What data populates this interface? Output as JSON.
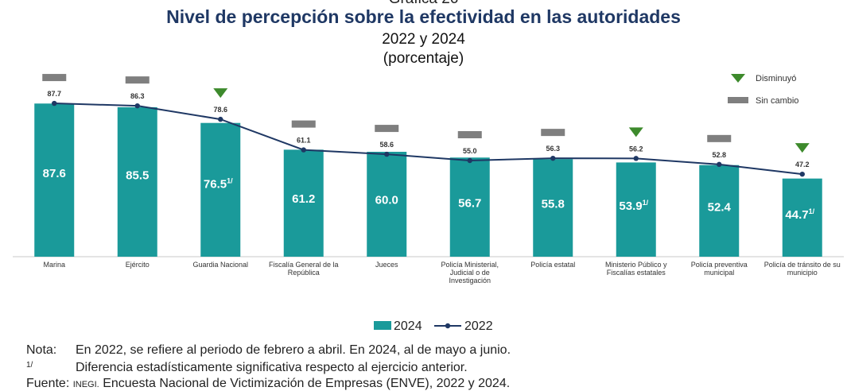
{
  "header": {
    "super_title": "Gráfica 26",
    "title": "Nivel de percepción sobre la efectividad en las autoridades",
    "subtitle": "2022 y 2024",
    "unit": "(porcentaje)"
  },
  "chart_data": {
    "type": "bar",
    "categories": [
      [
        "Marina"
      ],
      [
        "Ejército"
      ],
      [
        "Guardia Nacional"
      ],
      [
        "Fiscalía General de la",
        "República"
      ],
      [
        "Jueces"
      ],
      [
        "Policía Ministerial,",
        "Judicial o de",
        "Investigación"
      ],
      [
        "Policía estatal"
      ],
      [
        "Ministerio Público y",
        "Fiscalías estatales"
      ],
      [
        "Policía preventiva",
        "municipal"
      ],
      [
        "Policía de tránsito de su",
        "municipio"
      ]
    ],
    "series": [
      {
        "name": "2024",
        "kind": "bar",
        "color": "#1a9a9a",
        "values": [
          87.6,
          85.5,
          76.5,
          61.2,
          60.0,
          56.7,
          55.8,
          53.9,
          52.4,
          44.7
        ],
        "labels": [
          "87.6",
          "85.5",
          "76.5",
          "61.2",
          "60.0",
          "56.7",
          "55.8",
          "53.9",
          "52.4",
          "44.7"
        ],
        "significant": [
          false,
          false,
          true,
          false,
          false,
          false,
          false,
          true,
          false,
          true
        ]
      },
      {
        "name": "2022",
        "kind": "line",
        "color": "#1f3864",
        "values": [
          87.7,
          86.3,
          78.6,
          61.1,
          58.6,
          55.0,
          56.3,
          56.2,
          52.8,
          47.2
        ],
        "labels": [
          "87.7",
          "86.3",
          "78.6",
          "61.1",
          "58.6",
          "55.0",
          "56.3",
          "56.2",
          "52.8",
          "47.2"
        ]
      }
    ],
    "change_markers": [
      "sin_cambio",
      "sin_cambio",
      "disminuyo",
      "sin_cambio",
      "sin_cambio",
      "sin_cambio",
      "sin_cambio",
      "disminuyo",
      "sin_cambio",
      "disminuyo"
    ],
    "significance_mark": "1/",
    "ylim": [
      0,
      100
    ],
    "grid": false,
    "marker_legend": [
      {
        "key": "disminuyo",
        "label": "Disminuyó",
        "shape": "triangle-down",
        "color": "#3d8a2c"
      },
      {
        "key": "sin_cambio",
        "label": "Sin cambio",
        "shape": "dash",
        "color": "#7f7f7f"
      }
    ],
    "legend_position": "bottom"
  },
  "notes": {
    "note_label": "Nota:",
    "note_text": "En 2022, se refiere al periodo de febrero a abril. En 2024, al de mayo a junio.",
    "footnote_label": "1/",
    "footnote_text": "Diferencia estadísticamente significativa respecto al ejercicio anterior.",
    "source_label": "Fuente:",
    "source_org": "INEGI.",
    "source_text": "Encuesta Nacional de Victimización de Empresas (ENVE), 2022 y 2024."
  }
}
